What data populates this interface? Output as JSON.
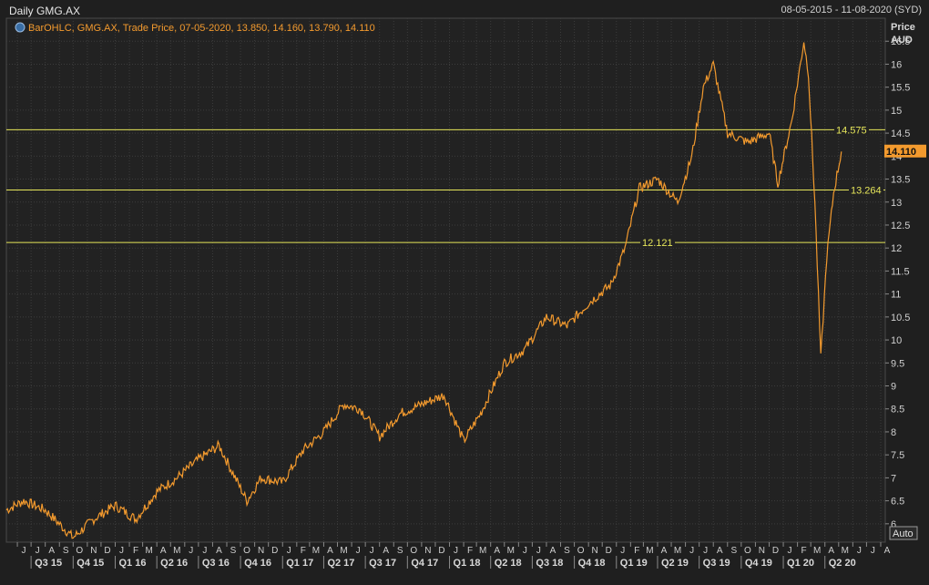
{
  "header": {
    "title": "Daily GMG.AX",
    "date_range": "08-05-2015 - 11-08-2020 (SYD)"
  },
  "legend": {
    "text": "BarOHLC, GMG.AX, Trade Price, 07-05-2020, 13.850, 14.160, 13.790, 14.110",
    "icon": "series-settings-icon"
  },
  "axis": {
    "y_title_1": "Price",
    "y_title_2": "AUD",
    "y_ticks": [
      "6",
      "6.5",
      "7",
      "7.5",
      "8",
      "8.5",
      "9",
      "9.5",
      "10",
      "10.5",
      "11",
      "11.5",
      "12",
      "12.5",
      "13",
      "13.5",
      "14",
      "14.5",
      "15",
      "15.5",
      "16",
      "16.5"
    ],
    "auto_button": "Auto",
    "months": [
      "J",
      "J",
      "A",
      "S",
      "O",
      "N",
      "D",
      "J",
      "F",
      "M",
      "A",
      "M",
      "J",
      "J",
      "A",
      "S",
      "O",
      "N",
      "D",
      "J",
      "F",
      "M",
      "A",
      "M",
      "J",
      "J",
      "A",
      "S",
      "O",
      "N",
      "D",
      "J",
      "F",
      "M",
      "A",
      "M",
      "J",
      "J",
      "A",
      "S",
      "O",
      "N",
      "D",
      "J",
      "F",
      "M",
      "A",
      "M",
      "J",
      "J",
      "A",
      "S",
      "O",
      "N",
      "D",
      "J",
      "F",
      "M",
      "A",
      "M",
      "J",
      "J",
      "A"
    ],
    "quarters": [
      "Q3 15",
      "Q4 15",
      "Q1 16",
      "Q2 16",
      "Q3 16",
      "Q4 16",
      "Q1 17",
      "Q2 17",
      "Q3 17",
      "Q4 17",
      "Q1 18",
      "Q2 18",
      "Q3 18",
      "Q4 18",
      "Q1 19",
      "Q2 19",
      "Q3 19",
      "Q4 19",
      "Q1 20",
      "Q2 20"
    ]
  },
  "colors": {
    "series": "#f39a2e",
    "hlines": "#e6e65a",
    "grid": "#3c3c3c",
    "last_price_bg": "#f39a2e"
  },
  "chart_data": {
    "type": "line",
    "title": "Daily GMG.AX",
    "ylabel": "Price AUD",
    "ylim": [
      5.6,
      17.0
    ],
    "last_price": "14.110",
    "horizontal_lines": [
      {
        "value": 14.575,
        "label": "14.575"
      },
      {
        "value": 13.264,
        "label": "13.264"
      },
      {
        "value": 12.121,
        "label": "12.121"
      }
    ],
    "series": [
      {
        "x": [
          "2015-05-08",
          "2015-06-15",
          "2015-08-01",
          "2015-10-01",
          "2015-11-15",
          "2016-01-01",
          "2016-02-15",
          "2016-04-01",
          "2016-05-15",
          "2016-07-01",
          "2016-08-15",
          "2016-10-15",
          "2016-11-15",
          "2017-01-01",
          "2017-02-15",
          "2017-04-01",
          "2017-05-15",
          "2017-06-20",
          "2017-08-01",
          "2017-09-15",
          "2017-11-01",
          "2017-12-20",
          "2018-02-01",
          "2018-03-10",
          "2018-05-01",
          "2018-06-15",
          "2018-08-01",
          "2018-09-15",
          "2018-11-01",
          "2018-12-20",
          "2019-01-20",
          "2019-02-20",
          "2019-04-01",
          "2019-05-15",
          "2019-06-15",
          "2019-07-10",
          "2019-08-01",
          "2019-09-01",
          "2019-10-15",
          "2019-12-01",
          "2019-12-20",
          "2020-01-20",
          "2020-02-15",
          "2020-02-25",
          "2020-03-10",
          "2020-03-23",
          "2020-04-05",
          "2020-04-20",
          "2020-05-07"
        ],
        "y": [
          6.3,
          6.5,
          6.3,
          5.7,
          6.1,
          6.4,
          6.1,
          6.7,
          7.0,
          7.4,
          7.7,
          6.5,
          7.0,
          6.9,
          7.6,
          8.0,
          8.6,
          8.5,
          7.9,
          8.4,
          8.6,
          8.8,
          7.8,
          8.4,
          9.5,
          9.8,
          10.5,
          10.3,
          10.8,
          11.2,
          12.0,
          13.3,
          13.5,
          13.0,
          14.0,
          15.5,
          16.0,
          14.5,
          14.3,
          14.5,
          13.4,
          14.8,
          16.5,
          15.8,
          13.0,
          9.6,
          11.8,
          13.2,
          14.1
        ]
      }
    ]
  }
}
